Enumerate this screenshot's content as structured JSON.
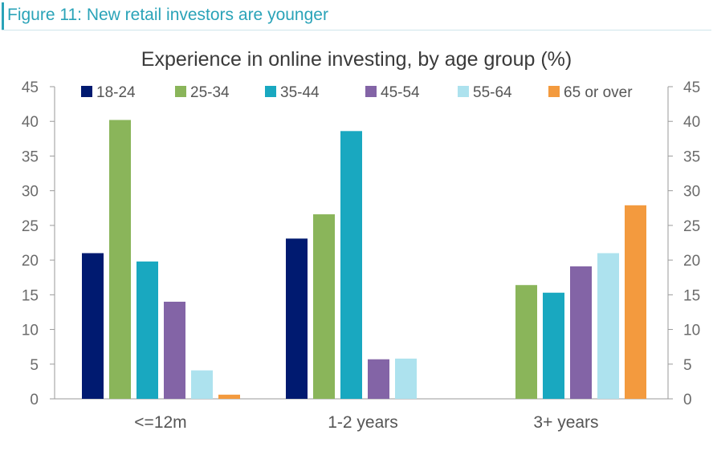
{
  "figure_label": "Figure 11: New retail investors are younger",
  "chart_data": {
    "type": "bar",
    "title": "Experience in online investing, by age group (%)",
    "categories": [
      "<=12m",
      "1-2 years",
      "3+ years"
    ],
    "series": [
      {
        "name": "18-24",
        "color": "#001a70",
        "values": [
          21,
          23.1,
          0
        ]
      },
      {
        "name": "25-34",
        "color": "#8ab55a",
        "values": [
          40.2,
          26.6,
          16.4
        ]
      },
      {
        "name": "35-44",
        "color": "#19a8c0",
        "values": [
          19.8,
          38.6,
          15.3
        ]
      },
      {
        "name": "45-54",
        "color": "#8364a6",
        "values": [
          14,
          5.7,
          19.1
        ]
      },
      {
        "name": "55-64",
        "color": "#ade2ee",
        "values": [
          4.1,
          5.8,
          21
        ]
      },
      {
        "name": "65 or over",
        "color": "#f39a3e",
        "values": [
          0.6,
          0,
          27.9
        ]
      }
    ],
    "ylim": [
      0,
      45
    ],
    "yticks": [
      0,
      5,
      10,
      15,
      20,
      25,
      30,
      35,
      40,
      45
    ],
    "y_axis_left": true,
    "y_axis_right": true,
    "grid": false,
    "legend_position": "top"
  }
}
